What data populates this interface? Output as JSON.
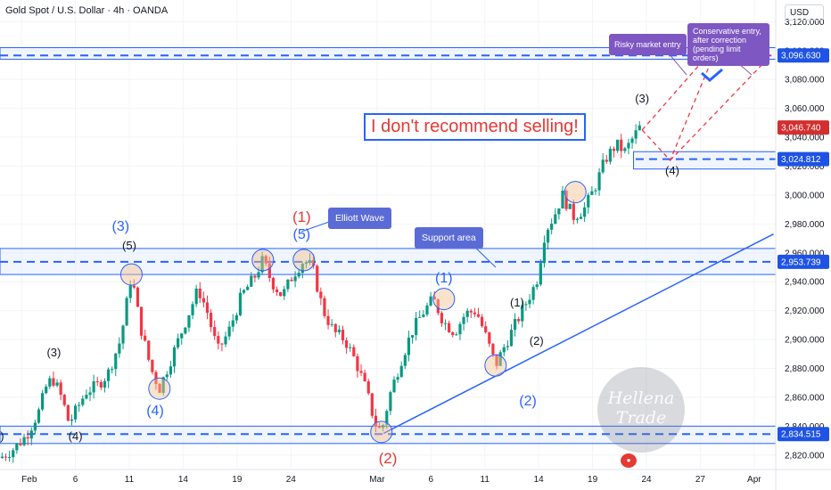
{
  "header": {
    "title": "Gold Spot / U.S. Dollar · 4h · OANDA",
    "currency": "USD"
  },
  "colors": {
    "up": "#089981",
    "down": "#f23645",
    "zone_line": "#2962ff",
    "zone_fill": "#e3ecfd",
    "trend": "#2962ff",
    "target": "#f23645",
    "current_price_tag": "#d32f2f",
    "level_tag": "#1e53e5"
  },
  "chart_data": {
    "type": "candlestick",
    "title": "Gold Spot / U.S. Dollar · 4h · OANDA",
    "ylim": [
      2810,
      3135
    ],
    "y_ticks": [
      2820,
      2840,
      2860,
      2880,
      2900,
      2920,
      2940,
      2960,
      2980,
      3000,
      3020,
      3040,
      3060,
      3080,
      3100,
      3120
    ],
    "y_tick_labels": [
      "2,820.000",
      "2,840.000",
      "2,860.000",
      "2,880.000",
      "2,900.000",
      "2,920.000",
      "2,940.000",
      "2,960.000",
      "2,980.000",
      "3,000.000",
      "3,020.000",
      "3,040.000",
      "3,060.000",
      "3,080.000",
      "3,100.000",
      "3,120.000"
    ],
    "x_ticks": [
      {
        "label": "Feb",
        "x": 1
      },
      {
        "label": "6",
        "x": 3.5
      },
      {
        "label": "11",
        "x": 6
      },
      {
        "label": "14",
        "x": 8.5
      },
      {
        "label": "19",
        "x": 11
      },
      {
        "label": "24",
        "x": 13.5
      },
      {
        "label": "Mar",
        "x": 17.5
      },
      {
        "label": "6",
        "x": 20
      },
      {
        "label": "11",
        "x": 22.5
      },
      {
        "label": "14",
        "x": 25
      },
      {
        "label": "19",
        "x": 27.5
      },
      {
        "label": "24",
        "x": 30
      },
      {
        "label": "27",
        "x": 32.5
      },
      {
        "label": "Apr",
        "x": 35
      }
    ],
    "price_path": [
      [
        0,
        2818
      ],
      [
        0.6,
        2824
      ],
      [
        1.2,
        2833
      ],
      [
        1.8,
        2850
      ],
      [
        2.2,
        2870
      ],
      [
        2.5,
        2872
      ],
      [
        2.9,
        2858
      ],
      [
        3.2,
        2842
      ],
      [
        3.5,
        2850
      ],
      [
        4.0,
        2864
      ],
      [
        4.5,
        2868
      ],
      [
        5.0,
        2876
      ],
      [
        5.6,
        2900
      ],
      [
        6.1,
        2945
      ],
      [
        6.5,
        2910
      ],
      [
        7.0,
        2880
      ],
      [
        7.4,
        2866
      ],
      [
        7.9,
        2885
      ],
      [
        8.6,
        2912
      ],
      [
        9.2,
        2935
      ],
      [
        9.6,
        2920
      ],
      [
        10.1,
        2892
      ],
      [
        10.6,
        2905
      ],
      [
        11.2,
        2930
      ],
      [
        11.8,
        2943
      ],
      [
        12.2,
        2955
      ],
      [
        12.6,
        2940
      ],
      [
        13.1,
        2930
      ],
      [
        13.6,
        2945
      ],
      [
        14.1,
        2955
      ],
      [
        14.5,
        2950
      ],
      [
        15.0,
        2920
      ],
      [
        15.5,
        2905
      ],
      [
        16.0,
        2900
      ],
      [
        16.5,
        2885
      ],
      [
        17.0,
        2865
      ],
      [
        17.4,
        2842
      ],
      [
        17.7,
        2836
      ],
      [
        18.1,
        2862
      ],
      [
        18.6,
        2885
      ],
      [
        19.1,
        2905
      ],
      [
        19.6,
        2918
      ],
      [
        20.1,
        2928
      ],
      [
        20.6,
        2912
      ],
      [
        21.1,
        2905
      ],
      [
        21.6,
        2918
      ],
      [
        22.1,
        2920
      ],
      [
        22.6,
        2900
      ],
      [
        23.0,
        2882
      ],
      [
        23.4,
        2895
      ],
      [
        23.9,
        2910
      ],
      [
        24.4,
        2925
      ],
      [
        24.9,
        2940
      ],
      [
        25.3,
        2975
      ],
      [
        25.7,
        2985
      ],
      [
        26.1,
        3000
      ],
      [
        26.6,
        2985
      ],
      [
        27.1,
        2990
      ],
      [
        27.6,
        3005
      ],
      [
        28.1,
        3025
      ],
      [
        28.6,
        3035
      ],
      [
        29.0,
        3030
      ],
      [
        29.4,
        3040
      ],
      [
        29.7,
        3047
      ]
    ],
    "last_price": 3046.74,
    "zones": [
      {
        "name": "resistance-zone",
        "low": 3094,
        "high": 3102
      },
      {
        "name": "support-area",
        "low": 2945,
        "high": 2963
      },
      {
        "name": "bottom-zone",
        "low": 2828,
        "high": 2840
      },
      {
        "name": "wave-4-target-zone",
        "low": 3018,
        "high": 3030
      }
    ],
    "levels": [
      {
        "value": 3096.63,
        "label": "3,096.630"
      },
      {
        "value": 3024.812,
        "label": "3,024.812"
      },
      {
        "value": 2953.739,
        "label": "2,953.739"
      },
      {
        "value": 2834.515,
        "label": "2,834.515"
      }
    ],
    "trendline": {
      "from": [
        17.8,
        2835
      ],
      "to": [
        35.9,
        2973
      ]
    },
    "projection": {
      "points": [
        [
          29.8,
          3045
        ],
        [
          31.1,
          3024
        ],
        [
          33.1,
          3096
        ],
        [
          35.8,
          3096
        ]
      ],
      "branch_from": [
        31.1,
        3024
      ],
      "branch_to": [
        33.1,
        3096
      ]
    },
    "current_price_tag": "3,046.740",
    "circled_pivots": [
      [
        6.1,
        2945
      ],
      [
        7.4,
        2866
      ],
      [
        12.2,
        2955
      ],
      [
        14.1,
        2955
      ],
      [
        17.7,
        2836
      ],
      [
        20.6,
        2928
      ],
      [
        23.0,
        2882
      ],
      [
        26.7,
        3002
      ]
    ],
    "wave_labels": [
      {
        "text": "(3)",
        "x": 2.5,
        "y": 2890,
        "style": "black"
      },
      {
        "text": "(4)",
        "x": 3.5,
        "y": 2832,
        "style": "black"
      },
      {
        "text": ")",
        "x": 0.1,
        "y": 2832,
        "style": "black"
      },
      {
        "text": "(5)",
        "x": 6.0,
        "y": 2964,
        "style": "black"
      },
      {
        "text": "(3)",
        "x": 5.6,
        "y": 2978,
        "style": "blue"
      },
      {
        "text": "(4)",
        "x": 7.2,
        "y": 2850,
        "style": "blue"
      },
      {
        "text": "(5)",
        "x": 14.0,
        "y": 2972,
        "style": "blue"
      },
      {
        "text": "(1)",
        "x": 14.0,
        "y": 2985,
        "style": "red"
      },
      {
        "text": "(2)",
        "x": 18.0,
        "y": 2818,
        "style": "red"
      },
      {
        "text": "(1)",
        "x": 20.6,
        "y": 2942,
        "style": "blue"
      },
      {
        "text": "(1)",
        "x": 24.0,
        "y": 2925,
        "style": "black"
      },
      {
        "text": "(2)",
        "x": 24.9,
        "y": 2898,
        "style": "black"
      },
      {
        "text": "(2)",
        "x": 24.5,
        "y": 2857,
        "style": "blue"
      },
      {
        "text": "(3)",
        "x": 29.8,
        "y": 3066,
        "style": "black"
      },
      {
        "text": "(4)",
        "x": 31.2,
        "y": 3016,
        "style": "black"
      }
    ]
  },
  "annotations": {
    "sell_warning": "I don't recommend selling!",
    "elliott": "Elliott Wave",
    "support": "Support area",
    "risky": "Risky market entry",
    "conservative": "Conservative entry, after correction (pending limit orders)"
  },
  "watermark": "Hellena Trade"
}
